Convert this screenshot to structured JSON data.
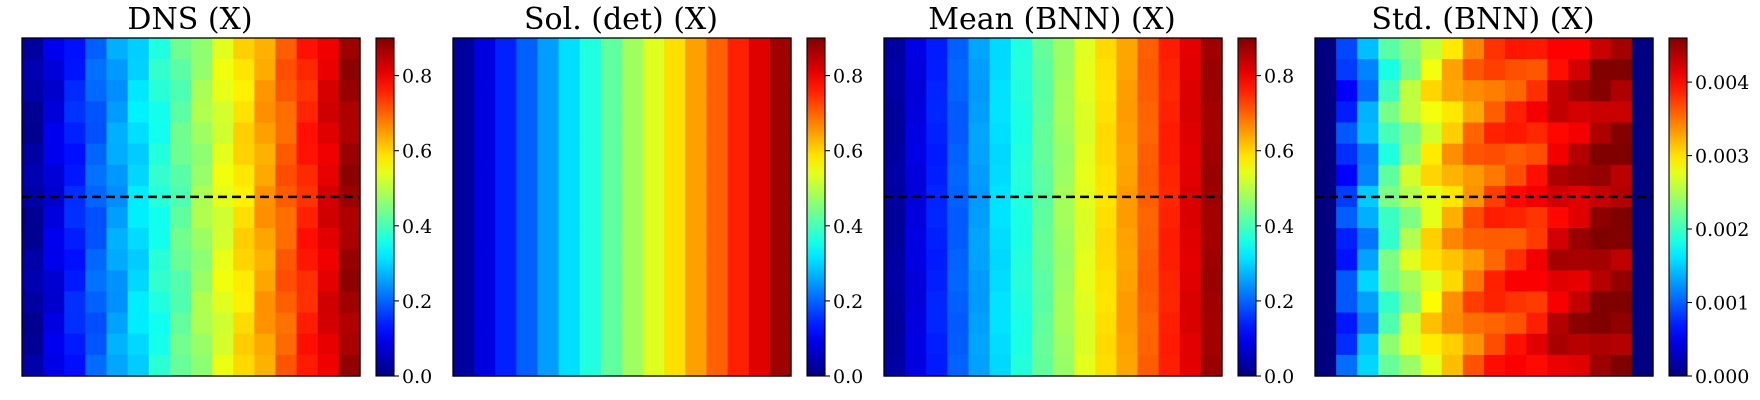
{
  "figure": {
    "background": "#ffffff"
  },
  "chart_data": [
    {
      "type": "heatmap",
      "title": "DNS (X)",
      "grid": false,
      "rows": 16,
      "cols": 16,
      "pattern": "linear-x",
      "row_variation": 0.018,
      "edge_columns": [],
      "vmin": 0.0,
      "vmax": 0.9,
      "colorbar_ticks": [
        0.0,
        0.2,
        0.4,
        0.6,
        0.8
      ],
      "colorbar_tick_labels": [
        "0.0",
        "0.2",
        "0.4",
        "0.6",
        "0.8"
      ],
      "colormap": "jet",
      "dashed_line": {
        "orientation": "horizontal",
        "row_fraction": 0.47
      }
    },
    {
      "type": "heatmap",
      "title": "Sol. (det) (X)",
      "grid": false,
      "rows": 16,
      "cols": 16,
      "pattern": "linear-x",
      "row_variation": 0.0,
      "edge_columns": [],
      "vmin": 0.0,
      "vmax": 0.9,
      "colorbar_ticks": [
        0.0,
        0.2,
        0.4,
        0.6,
        0.8
      ],
      "colorbar_tick_labels": [
        "0.0",
        "0.2",
        "0.4",
        "0.6",
        "0.8"
      ],
      "colormap": "jet",
      "dashed_line": null
    },
    {
      "type": "heatmap",
      "title": "Mean (BNN) (X)",
      "grid": false,
      "rows": 16,
      "cols": 16,
      "pattern": "linear-x",
      "row_variation": 0.006,
      "edge_columns": [],
      "vmin": 0.0,
      "vmax": 0.9,
      "colorbar_ticks": [
        0.0,
        0.2,
        0.4,
        0.6,
        0.8
      ],
      "colorbar_tick_labels": [
        "0.0",
        "0.2",
        "0.4",
        "0.6",
        "0.8"
      ],
      "colormap": "jet",
      "dashed_line": {
        "orientation": "horizontal",
        "row_fraction": 0.47
      }
    },
    {
      "type": "heatmap",
      "title": "Std. (BNN) (X)",
      "grid": false,
      "rows": 16,
      "cols": 16,
      "pattern": "std-profile",
      "column_profile": [
        0.0,
        0.0008,
        0.0013,
        0.0021,
        0.0025,
        0.0029,
        0.0032,
        0.0035,
        0.0037,
        0.0038,
        0.0039,
        0.0042,
        0.0043,
        0.0045,
        0.0045,
        0.0
      ],
      "row_variation": 0.00035,
      "edge_columns": [
        0,
        15
      ],
      "vmin": 0.0,
      "vmax": 0.0046,
      "colorbar_ticks": [
        0.0,
        0.001,
        0.002,
        0.003,
        0.004
      ],
      "colorbar_tick_labels": [
        "0.000",
        "0.001",
        "0.002",
        "0.003",
        "0.004"
      ],
      "colormap": "jet",
      "dashed_line": {
        "orientation": "horizontal",
        "row_fraction": 0.47
      }
    }
  ]
}
